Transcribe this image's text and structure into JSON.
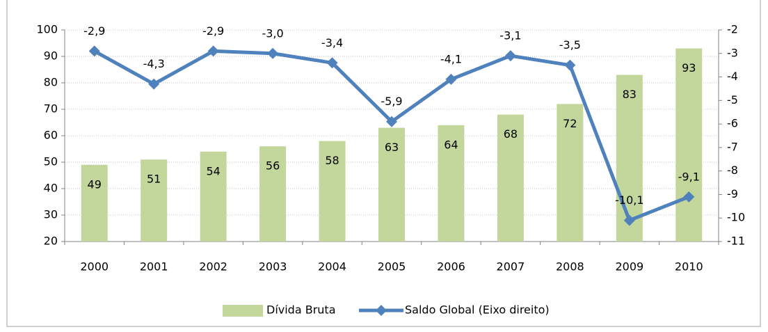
{
  "chart_data": {
    "type": "bar-line",
    "categories": [
      "2000",
      "2001",
      "2002",
      "2003",
      "2004",
      "2005",
      "2006",
      "2007",
      "2008",
      "2009",
      "2010"
    ],
    "series": [
      {
        "name": "Dívida Bruta",
        "type": "bar",
        "color": "#c3d69b",
        "values": [
          49,
          51,
          54,
          56,
          58,
          63,
          64,
          68,
          72,
          83,
          93
        ]
      },
      {
        "name": "Saldo Global  (Eixo direito)",
        "type": "line",
        "axis": "y2",
        "color": "#4f81bd",
        "values": [
          -2.9,
          -4.3,
          -2.9,
          -3.0,
          -3.4,
          -5.9,
          -4.1,
          -3.1,
          -3.5,
          -10.1,
          -9.1
        ],
        "value_labels": [
          "-2,9",
          "-4,3",
          "-2,9",
          "-3,0",
          "-3,4",
          "-5,9",
          "-4,1",
          "-3,1",
          "-3,5",
          "-10,1",
          "-9,1"
        ]
      }
    ],
    "ylim": [
      20,
      100
    ],
    "yticks": [
      20,
      30,
      40,
      50,
      60,
      70,
      80,
      90,
      100
    ],
    "y2lim": [
      -11,
      -2
    ],
    "y2ticks": [
      -11,
      -10,
      -9,
      -8,
      -7,
      -6,
      -5,
      -4,
      -3,
      -2
    ],
    "grid": true,
    "legend": "bottom"
  }
}
